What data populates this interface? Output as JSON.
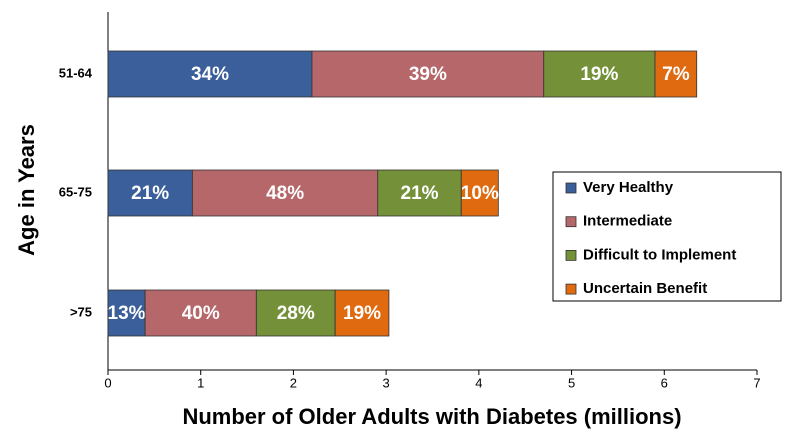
{
  "chart_data": {
    "type": "stacked_barh",
    "x_label": "Number of Older Adults with Diabetes (millions)",
    "y_label": "Age in Years",
    "categories": [
      "51-64",
      "65-75",
      ">75"
    ],
    "series": [
      {
        "name": "Very Healthy",
        "color": "#3a5f9a",
        "values": [
          2.2,
          0.91,
          0.4
        ],
        "segment_labels": [
          "34%",
          "21%",
          "13%"
        ]
      },
      {
        "name": "Intermediate",
        "color": "#b5676a",
        "values": [
          2.5,
          2.0,
          1.2
        ],
        "segment_labels": [
          "39%",
          "48%",
          "40%"
        ]
      },
      {
        "name": "Difficult to Implement",
        "color": "#74913a",
        "values": [
          1.2,
          0.9,
          0.85
        ],
        "segment_labels": [
          "19%",
          "21%",
          "28%"
        ]
      },
      {
        "name": "Uncertain Benefit",
        "color": "#e06a10",
        "values": [
          0.45,
          0.4,
          0.58
        ],
        "segment_labels": [
          "7%",
          "10%",
          "19%"
        ]
      }
    ],
    "xlim": [
      0,
      7
    ],
    "xticks": [
      0,
      1,
      2,
      3,
      4,
      5,
      6,
      7
    ],
    "grid": false,
    "legend": "right"
  }
}
